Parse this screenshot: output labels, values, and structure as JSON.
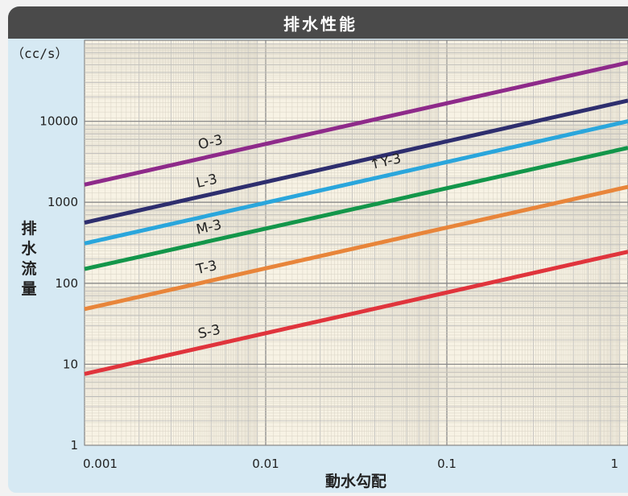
{
  "header": {
    "title": "排水性能"
  },
  "chart_data": {
    "type": "line",
    "title": "排水性能",
    "xlabel": "動水勾配",
    "ylabel": "排水流量",
    "yunit": "（cc/s）",
    "x_scale": "log",
    "y_scale": "log",
    "xlim": [
      0.001,
      1
    ],
    "ylim": [
      1,
      100000
    ],
    "x_tick_labels": [
      "0.001",
      "0.01",
      "0.1",
      "1"
    ],
    "y_tick_labels": [
      "1",
      "10",
      "100",
      "1000",
      "10000"
    ],
    "grid": true,
    "legend": "none",
    "series": [
      {
        "name": "O-3",
        "label": "O-3",
        "color": "#8e2a8a",
        "points": [
          [
            0.001,
            1650
          ],
          [
            1.0,
            53000
          ]
        ]
      },
      {
        "name": "L-3",
        "label": "L-3",
        "color": "#2e2e6e",
        "points": [
          [
            0.001,
            560
          ],
          [
            1.0,
            18000
          ]
        ]
      },
      {
        "name": "Y-3",
        "label": "↑Y-3",
        "color": "#2aa6dc",
        "points": [
          [
            0.001,
            310
          ],
          [
            1.0,
            10000
          ]
        ]
      },
      {
        "name": "M-3",
        "label": "M-3",
        "color": "#13964a",
        "points": [
          [
            0.001,
            150
          ],
          [
            1.0,
            4700
          ]
        ]
      },
      {
        "name": "T-3",
        "label": "T-3",
        "color": "#e8853a",
        "points": [
          [
            0.001,
            48
          ],
          [
            1.0,
            1550
          ]
        ]
      },
      {
        "name": "S-3",
        "label": "S-3",
        "color": "#e0343c",
        "points": [
          [
            0.001,
            7.6
          ],
          [
            1.0,
            245
          ]
        ]
      }
    ]
  }
}
